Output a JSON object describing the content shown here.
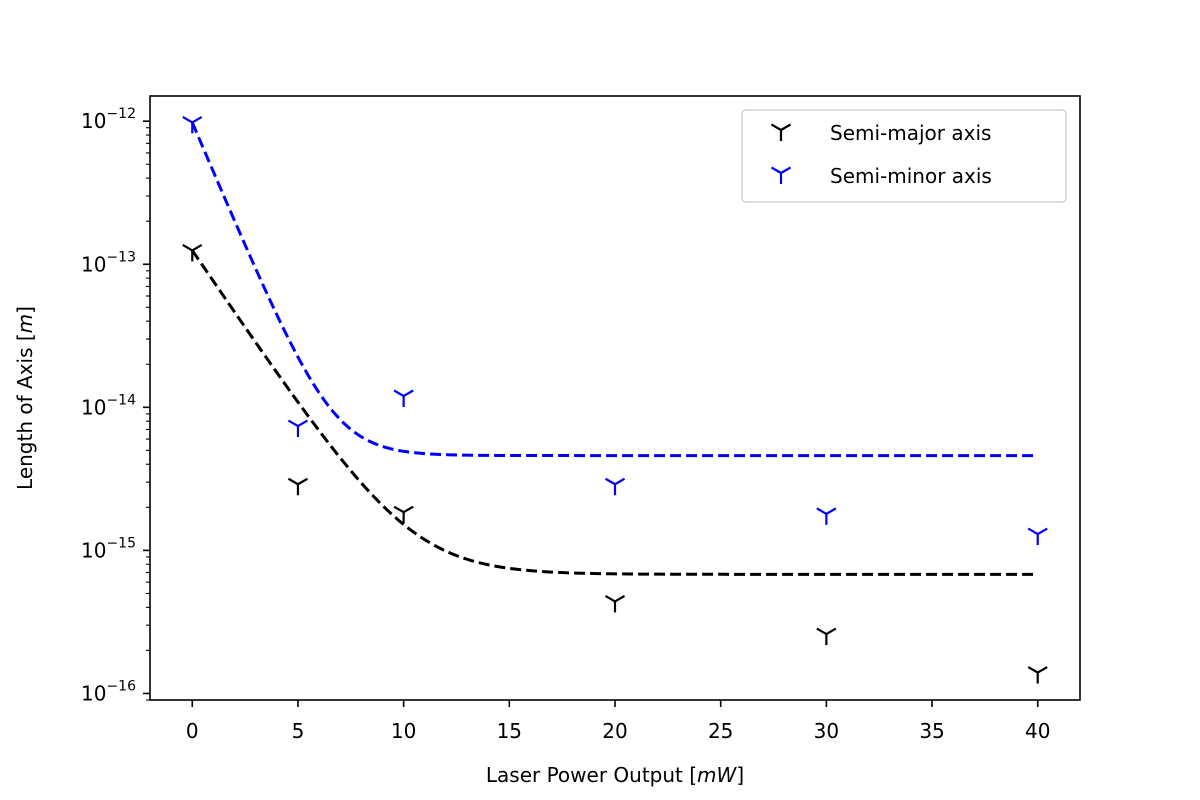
{
  "chart_data": {
    "type": "scatter",
    "xlabel": "Laser Power Output [mW]",
    "xlabel_parts": {
      "prefix": "Laser Power Output [",
      "unit": "mW",
      "suffix": "]"
    },
    "ylabel": "Length of Axis [m]",
    "ylabel_parts": {
      "prefix": "Length of Axis [",
      "unit": "m",
      "suffix": "]"
    },
    "xlim": [
      -2,
      42
    ],
    "ylim": [
      9e-17,
      1.5e-12
    ],
    "yscale": "log",
    "grid": false,
    "legend_position": "top-right",
    "x_ticks": [
      0,
      5,
      10,
      15,
      20,
      25,
      30,
      35,
      40
    ],
    "x_tick_labels": [
      "0",
      "5",
      "10",
      "15",
      "20",
      "25",
      "30",
      "35",
      "40"
    ],
    "y_ticks": [
      {
        "value": 1e-16,
        "base": "10",
        "exponent": "−16"
      },
      {
        "value": 1e-15,
        "base": "10",
        "exponent": "−15"
      },
      {
        "value": 1e-14,
        "base": "10",
        "exponent": "−14"
      },
      {
        "value": 1e-13,
        "base": "10",
        "exponent": "−13"
      },
      {
        "value": 1e-12,
        "base": "10",
        "exponent": "−12"
      }
    ],
    "series": [
      {
        "name": "Semi-major axis",
        "color": "#000000",
        "marker": "tri_down",
        "x": [
          0,
          5,
          10,
          20,
          30,
          40
        ],
        "y": [
          1.25e-13,
          2.9e-15,
          1.85e-15,
          4.4e-16,
          2.6e-16,
          1.4e-16
        ],
        "fit": {
          "x_start": 0,
          "x_end": 40,
          "y0": 1.25e-13,
          "floor": 6.8e-16,
          "decay": 0.5
        }
      },
      {
        "name": "Semi-minor axis",
        "color": "#0000ff",
        "marker": "tri_down",
        "x": [
          0,
          5,
          10,
          20,
          30,
          40
        ],
        "y": [
          9.8e-13,
          7.4e-15,
          1.2e-14,
          2.9e-15,
          1.8e-15,
          1.3e-15
        ],
        "fit": {
          "x_start": 0,
          "x_end": 40,
          "y0": 9.8e-13,
          "floor": 4.6e-15,
          "decay": 0.8
        }
      }
    ]
  }
}
